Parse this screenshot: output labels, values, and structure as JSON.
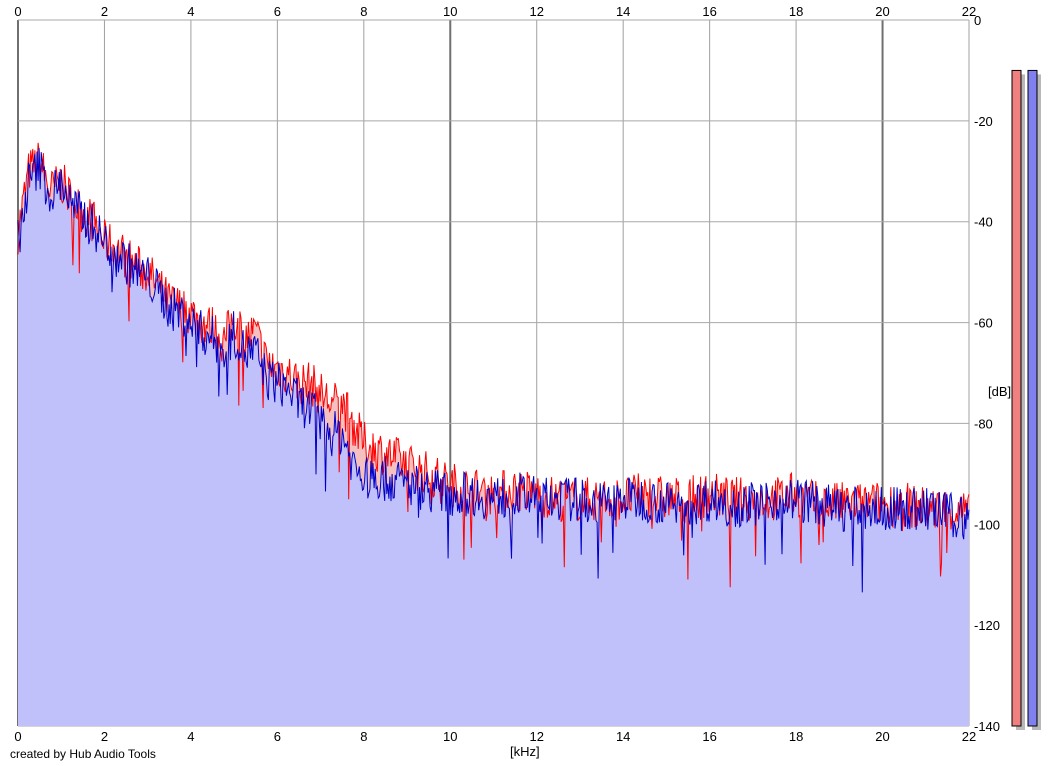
{
  "credit": "created by Hub Audio Tools",
  "chart_data": {
    "type": "area",
    "title": "",
    "xlabel": "[kHz]",
    "ylabel": "[dB]",
    "xlim": [
      0,
      22
    ],
    "ylim": [
      -140,
      0
    ],
    "x_ticks": [
      "0",
      "2",
      "4",
      "6",
      "8",
      "10",
      "12",
      "14",
      "16",
      "18",
      "20",
      "22"
    ],
    "y_ticks": [
      "0",
      "-20",
      "-40",
      "-60",
      "-80",
      "-100",
      "-120",
      "-140"
    ],
    "grid": true,
    "series": [
      {
        "color": "#ff0000",
        "x": [
          0,
          0.25,
          0.5,
          0.75,
          1.0,
          1.25,
          1.5,
          1.75,
          2.0,
          2.25,
          2.5,
          2.75,
          3.0,
          3.25,
          3.5,
          3.75,
          4.0,
          4.25,
          4.5,
          4.75,
          5.0,
          5.25,
          5.5,
          5.75,
          6.0,
          6.25,
          6.5,
          6.75,
          7.0,
          7.25,
          7.5,
          7.75,
          8.0,
          8.5,
          9.0,
          9.5,
          10.0,
          10.5,
          11.0,
          11.5,
          12.0,
          12.5,
          13.0,
          13.5,
          14.0,
          14.5,
          15.0,
          15.5,
          16.0,
          16.5,
          17.0,
          17.5,
          18.0,
          18.5,
          19.0,
          19.5,
          20.0,
          20.5,
          21.0,
          21.5,
          22.0
        ],
        "values": [
          -42,
          -30,
          -28,
          -34,
          -32,
          -36,
          -38,
          -40,
          -44,
          -45,
          -47,
          -49,
          -50,
          -53,
          -56,
          -57,
          -58,
          -60,
          -61,
          -64,
          -59,
          -63,
          -62,
          -68,
          -69,
          -70,
          -72,
          -72,
          -74,
          -76,
          -76,
          -80,
          -84,
          -86,
          -88,
          -90,
          -92,
          -93,
          -94,
          -93,
          -94,
          -95,
          -95,
          -95,
          -95,
          -94,
          -95,
          -95,
          -94,
          -95,
          -95,
          -95,
          -94,
          -96,
          -96,
          -96,
          -96,
          -96,
          -97,
          -97,
          -98
        ]
      },
      {
        "color": "#0000c8",
        "fill": "#c0c0fa",
        "x": [
          0,
          0.25,
          0.5,
          0.75,
          1.0,
          1.25,
          1.5,
          1.75,
          2.0,
          2.25,
          2.5,
          2.75,
          3.0,
          3.25,
          3.5,
          3.75,
          4.0,
          4.25,
          4.5,
          4.75,
          5.0,
          5.25,
          5.5,
          5.75,
          6.0,
          6.25,
          6.5,
          6.75,
          7.0,
          7.25,
          7.5,
          7.75,
          8.0,
          8.5,
          9.0,
          9.5,
          10.0,
          10.5,
          11.0,
          11.5,
          12.0,
          12.5,
          13.0,
          13.5,
          14.0,
          14.5,
          15.0,
          15.5,
          16.0,
          16.5,
          17.0,
          17.5,
          18.0,
          18.5,
          19.0,
          19.5,
          20.0,
          20.5,
          21.0,
          21.5,
          22.0
        ],
        "values": [
          -44,
          -32,
          -29,
          -35,
          -32,
          -37,
          -39,
          -41,
          -44,
          -46,
          -48,
          -50,
          -51,
          -54,
          -57,
          -58,
          -60,
          -62,
          -63,
          -66,
          -62,
          -66,
          -66,
          -71,
          -72,
          -73,
          -76,
          -77,
          -80,
          -82,
          -82,
          -88,
          -91,
          -91,
          -92,
          -93,
          -94,
          -94,
          -95,
          -94,
          -95,
          -95,
          -95,
          -96,
          -95,
          -95,
          -96,
          -96,
          -95,
          -96,
          -96,
          -95,
          -95,
          -96,
          -97,
          -97,
          -97,
          -97,
          -97,
          -98,
          -99
        ]
      }
    ],
    "level_meters": [
      {
        "color": "#f08080",
        "level_db": -10
      },
      {
        "color": "#8080f0",
        "level_db": -10
      }
    ]
  }
}
